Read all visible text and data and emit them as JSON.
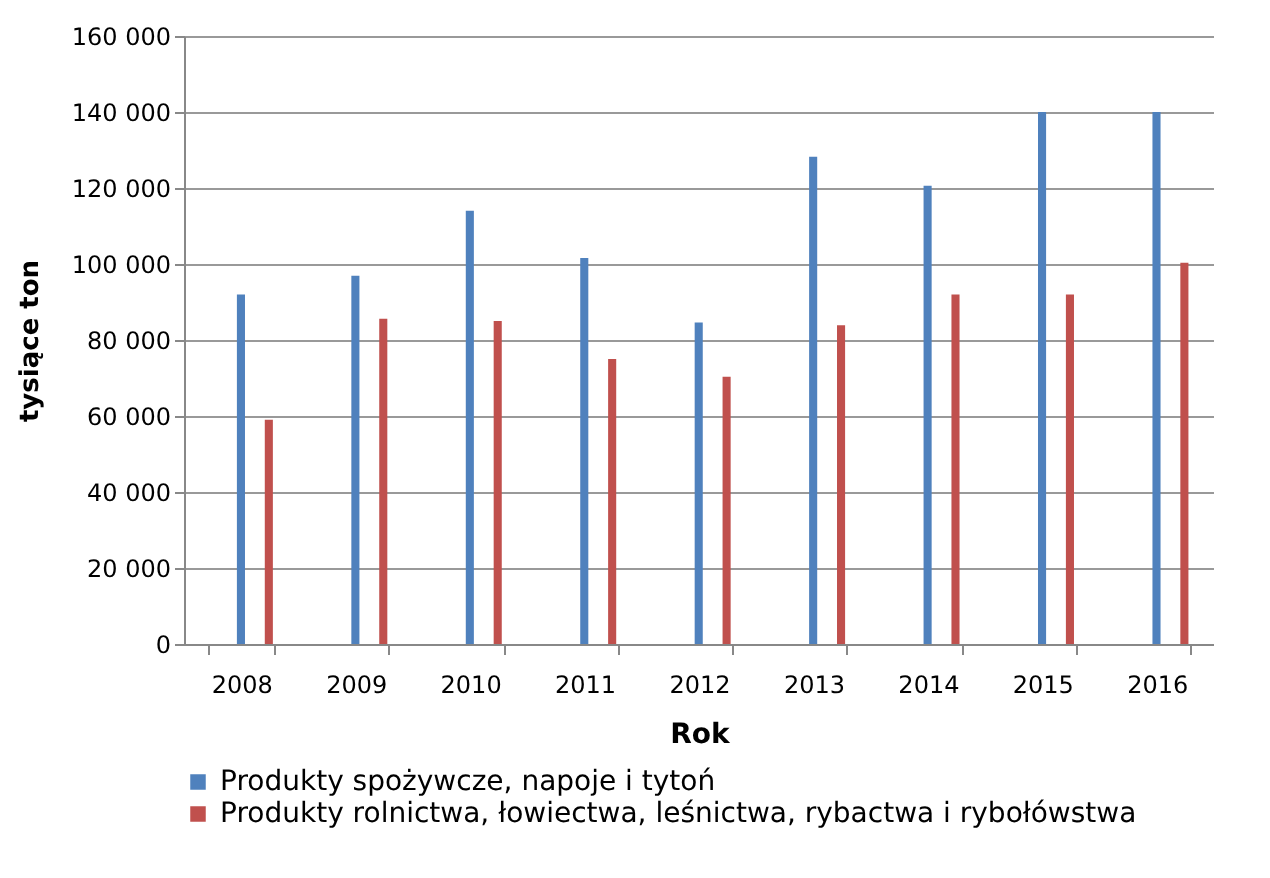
{
  "chart_data": {
    "type": "bar",
    "xlabel": "Rok",
    "ylabel": "tysiące ton",
    "categories": [
      "2008",
      "2009",
      "2010",
      "2011",
      "2012",
      "2013",
      "2014",
      "2015",
      "2016"
    ],
    "series": [
      {
        "name": "Produkty spożywcze, napoje i tytoń",
        "color": "#4f81bd",
        "values": [
          92000,
          96900,
          114000,
          101600,
          84600,
          128200,
          120600,
          140000,
          140000
        ]
      },
      {
        "name": "Produkty rolnictwa, łowiectwa, leśnictwa, rybactwa i rybołówstwa",
        "color": "#c0504d",
        "values": [
          59000,
          85600,
          85000,
          75000,
          70300,
          83900,
          92000,
          92000,
          100300
        ]
      }
    ],
    "ylim": [
      0,
      160000
    ],
    "yticks": [
      {
        "value": 0,
        "label": "0"
      },
      {
        "value": 20000,
        "label": "20 000"
      },
      {
        "value": 40000,
        "label": "40 000"
      },
      {
        "value": 60000,
        "label": "60 000"
      },
      {
        "value": 80000,
        "label": "80 000"
      },
      {
        "value": 100000,
        "label": "100 000"
      },
      {
        "value": 120000,
        "label": "120 000"
      },
      {
        "value": 140000,
        "label": "140 000"
      },
      {
        "value": 160000,
        "label": "160 000"
      }
    ],
    "grid": "y",
    "legend": "bottom"
  }
}
